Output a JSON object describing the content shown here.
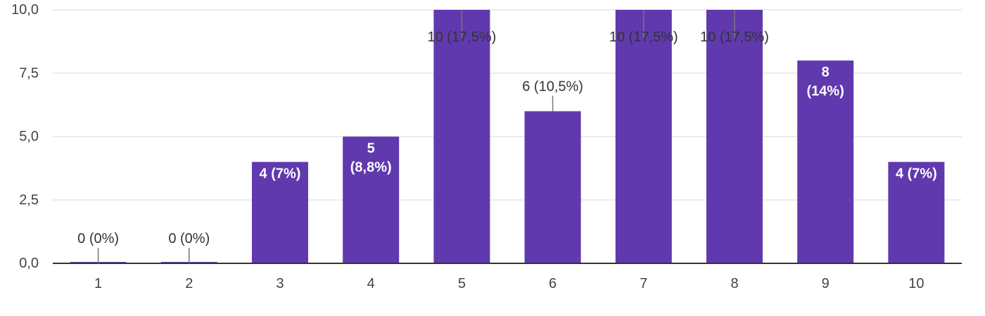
{
  "chart_data": {
    "type": "bar",
    "categories": [
      "1",
      "2",
      "3",
      "4",
      "5",
      "6",
      "7",
      "8",
      "9",
      "10"
    ],
    "values": [
      0,
      0,
      4,
      5,
      10,
      6,
      10,
      10,
      8,
      4
    ],
    "data_labels": [
      [
        "0 (0%)"
      ],
      [
        "0 (0%)"
      ],
      [
        "4 (7%)"
      ],
      [
        "5",
        "(8,8%)"
      ],
      [
        "10 (17,5%)"
      ],
      [
        "6 (10,5%)"
      ],
      [
        "10 (17,5%)"
      ],
      [
        "10 (17,5%)"
      ],
      [
        "8",
        "(14%)"
      ],
      [
        "4 (7%)"
      ]
    ],
    "label_positions": [
      "outside",
      "outside",
      "inside",
      "inside",
      "inside-leader",
      "outside",
      "inside-leader",
      "inside-leader",
      "inside",
      "inside"
    ],
    "y_ticks": [
      "0,0",
      "2,5",
      "5,0",
      "7,5",
      "10,0"
    ],
    "y_tick_values": [
      0,
      2.5,
      5,
      7.5,
      10
    ],
    "ylim": [
      0,
      10
    ],
    "grid": true,
    "colors": {
      "bar": "#6039ae",
      "grid": "#e6e6e6",
      "axis": "#333333",
      "leader": "#777777"
    }
  }
}
